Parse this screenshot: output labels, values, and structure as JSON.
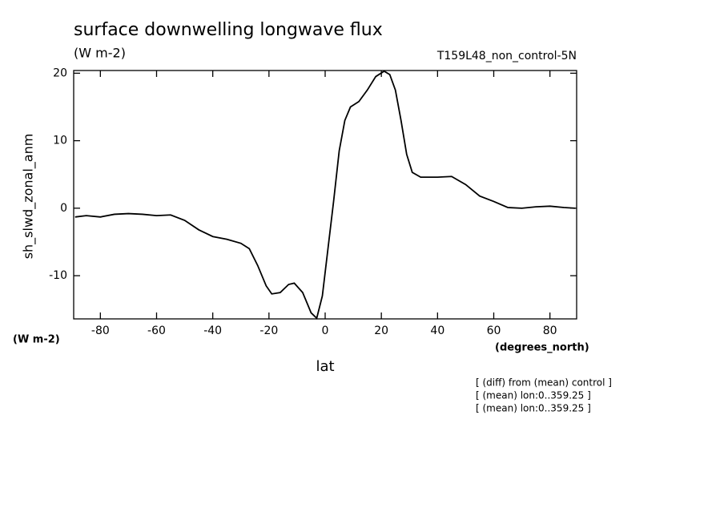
{
  "chart_data": {
    "type": "line",
    "title": "surface downwelling longwave flux",
    "units": "(W m-2)",
    "run_label": "T159L48_non_control-5N",
    "y_label": "sh_slwd_zonal_anm",
    "y_units": "(W m-2)",
    "x_units": "(degrees_north)",
    "x_label": "lat",
    "notes": [
      "[ (diff) from (mean) control ]",
      "[ (mean) lon:0..359.25 ]",
      "[ (mean) lon:0..359.25 ]"
    ],
    "x": [
      -89,
      -85,
      -80,
      -75,
      -70,
      -65,
      -60,
      -55,
      -50,
      -45,
      -40,
      -35,
      -30,
      -27,
      -24,
      -21,
      -19,
      -16,
      -13,
      -11,
      -8,
      -5,
      -3,
      -1,
      1,
      3,
      5,
      7,
      9,
      12,
      15,
      18,
      21,
      23,
      25,
      27,
      29,
      31,
      34,
      40,
      45,
      50,
      55,
      60,
      65,
      70,
      75,
      80,
      85,
      89
    ],
    "series": [
      {
        "name": "sh_slwd_zonal_anm",
        "color": "#000000",
        "values": [
          -1.3,
          -1.1,
          -1.3,
          -0.9,
          -0.8,
          -0.9,
          -1.1,
          -1.0,
          -1.8,
          -3.2,
          -4.2,
          -4.6,
          -5.2,
          -6.0,
          -8.5,
          -11.5,
          -12.7,
          -12.5,
          -11.3,
          -11.1,
          -12.5,
          -15.5,
          -16.3,
          -13,
          -6,
          1,
          8.5,
          13,
          15,
          15.8,
          17.5,
          19.5,
          20.3,
          19.8,
          17.5,
          13,
          8,
          5.3,
          4.6,
          4.6,
          4.7,
          3.5,
          1.8,
          1.0,
          0.1,
          0.0,
          0.2,
          0.3,
          0.1,
          0.0
        ]
      }
    ],
    "xlim": [
      -89.5,
      89.5
    ],
    "ylim": [
      -16.4,
      20.4
    ],
    "xticks": [
      -80,
      -60,
      -40,
      -20,
      0,
      20,
      40,
      60,
      80
    ],
    "yticks": [
      -10,
      0,
      10,
      20
    ]
  }
}
